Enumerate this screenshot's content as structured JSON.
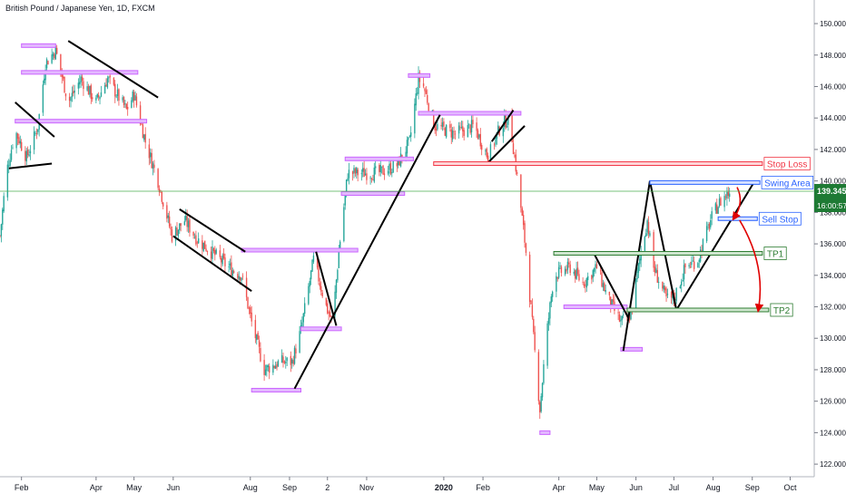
{
  "header": {
    "symbol_title": "British Pound / Japanese Yen, 1D, FXCM"
  },
  "colors": {
    "up": "#26a69a",
    "down": "#ef5350",
    "zone_purple": "#cc66ff",
    "zone_purple_fill": "#e3b8ff",
    "stop_red": "#f23645",
    "swing_blue": "#2962ff",
    "tp_green": "#2e7d32",
    "tp_fill": "#cfe6cf",
    "price_line": "#4caf50",
    "trendline": "#000000",
    "arrow_red": "#e00000"
  },
  "chart_data": {
    "type": "candlestick",
    "title": "British Pound / Japanese Yen, 1D, FXCM",
    "ylim": [
      121.2,
      151.5
    ],
    "y_ticks": [
      122,
      124,
      126,
      128,
      130,
      132,
      134,
      136,
      138,
      140,
      142,
      144,
      146,
      148,
      150
    ],
    "y_tick_labels": [
      "122.000",
      "124.000",
      "126.000",
      "128.000",
      "130.000",
      "132.000",
      "134.000",
      "136.000",
      "138.000",
      "140.000",
      "142.000",
      "144.000",
      "146.000",
      "148.000",
      "150.000"
    ],
    "x_range": [
      "2019-01-15",
      "2020-10-20"
    ],
    "x_ticks": [
      {
        "date": "2019-02-01",
        "label": "Feb"
      },
      {
        "date": "2019-04-01",
        "label": "Apr"
      },
      {
        "date": "2019-05-01",
        "label": "May"
      },
      {
        "date": "2019-06-01",
        "label": "Jun"
      },
      {
        "date": "2019-08-01",
        "label": "Aug"
      },
      {
        "date": "2019-09-01",
        "label": "Sep"
      },
      {
        "date": "2019-10-01",
        "label": "2"
      },
      {
        "date": "2019-11-01",
        "label": "Nov"
      },
      {
        "date": "2020-01-01",
        "label": "2020"
      },
      {
        "date": "2020-02-01",
        "label": "Feb"
      },
      {
        "date": "2020-04-01",
        "label": "Apr"
      },
      {
        "date": "2020-05-01",
        "label": "May"
      },
      {
        "date": "2020-06-01",
        "label": "Jun"
      },
      {
        "date": "2020-07-01",
        "label": "Jul"
      },
      {
        "date": "2020-08-01",
        "label": "Aug"
      },
      {
        "date": "2020-09-01",
        "label": "Sep"
      },
      {
        "date": "2020-10-01",
        "label": "Oct"
      }
    ],
    "grid": false,
    "price_path": [
      [
        "2019-01-15",
        136.5
      ],
      [
        "2019-01-20",
        140.5
      ],
      [
        "2019-01-27",
        143.2
      ],
      [
        "2019-02-05",
        141.5
      ],
      [
        "2019-02-10",
        142.5
      ],
      [
        "2019-02-14",
        143.5
      ],
      [
        "2019-02-20",
        147.5
      ],
      [
        "2019-02-28",
        148.3
      ],
      [
        "2019-03-10",
        145.0
      ],
      [
        "2019-03-20",
        146.5
      ],
      [
        "2019-04-01",
        145.0
      ],
      [
        "2019-04-10",
        146.5
      ],
      [
        "2019-04-25",
        144.5
      ],
      [
        "2019-05-01",
        145.5
      ],
      [
        "2019-05-10",
        142.5
      ],
      [
        "2019-05-20",
        140.0
      ],
      [
        "2019-05-31",
        136.5
      ],
      [
        "2019-06-10",
        137.5
      ],
      [
        "2019-06-20",
        136.3
      ],
      [
        "2019-07-01",
        135.5
      ],
      [
        "2019-07-15",
        134.5
      ],
      [
        "2019-07-25",
        134.0
      ],
      [
        "2019-08-02",
        131.0
      ],
      [
        "2019-08-12",
        128.0
      ],
      [
        "2019-08-25",
        128.5
      ],
      [
        "2019-09-03",
        128.5
      ],
      [
        "2019-09-10",
        130.5
      ],
      [
        "2019-09-20",
        135.0
      ],
      [
        "2019-09-30",
        132.0
      ],
      [
        "2019-10-05",
        131.0
      ],
      [
        "2019-10-10",
        135.5
      ],
      [
        "2019-10-17",
        140.5
      ],
      [
        "2019-10-25",
        140.5
      ],
      [
        "2019-11-10",
        140.5
      ],
      [
        "2019-11-25",
        141.0
      ],
      [
        "2019-12-05",
        142.5
      ],
      [
        "2019-12-12",
        146.5
      ],
      [
        "2019-12-16",
        146.0
      ],
      [
        "2019-12-25",
        143.5
      ],
      [
        "2020-01-10",
        143.0
      ],
      [
        "2020-01-25",
        143.5
      ],
      [
        "2020-02-05",
        141.5
      ],
      [
        "2020-02-15",
        143.5
      ],
      [
        "2020-02-22",
        144.0
      ],
      [
        "2020-03-01",
        139.0
      ],
      [
        "2020-03-06",
        135.5
      ],
      [
        "2020-03-12",
        130.0
      ],
      [
        "2020-03-17",
        125.5
      ],
      [
        "2020-03-22",
        130.0
      ],
      [
        "2020-03-28",
        134.0
      ],
      [
        "2020-04-10",
        134.5
      ],
      [
        "2020-04-20",
        133.5
      ],
      [
        "2020-05-01",
        134.5
      ],
      [
        "2020-05-10",
        132.5
      ],
      [
        "2020-05-20",
        131.0
      ],
      [
        "2020-05-28",
        131.5
      ],
      [
        "2020-06-05",
        135.5
      ],
      [
        "2020-06-10",
        137.5
      ],
      [
        "2020-06-15",
        134.5
      ],
      [
        "2020-06-25",
        132.5
      ],
      [
        "2020-07-01",
        132.5
      ],
      [
        "2020-07-10",
        134.5
      ],
      [
        "2020-07-20",
        135.0
      ],
      [
        "2020-07-30",
        137.5
      ],
      [
        "2020-08-05",
        138.5
      ],
      [
        "2020-08-10",
        139.0
      ],
      [
        "2020-08-14",
        139.3
      ]
    ],
    "current_price": {
      "value": 139.345,
      "label": "139.345",
      "countdown": "16:00:57"
    },
    "zones": [
      {
        "name": "zone-purple",
        "x1": "2019-02-01",
        "x2": "2019-02-28",
        "y": 148.6
      },
      {
        "name": "zone-purple",
        "x1": "2019-02-01",
        "x2": "2019-05-04",
        "y": 146.9
      },
      {
        "name": "zone-purple",
        "x1": "2019-01-27",
        "x2": "2019-05-11",
        "y": 143.8
      },
      {
        "name": "zone-purple",
        "x1": "2019-07-25",
        "x2": "2019-10-25",
        "y": 135.6
      },
      {
        "name": "zone-purple",
        "x1": "2019-09-10",
        "x2": "2019-10-12",
        "y": 130.6
      },
      {
        "name": "zone-purple",
        "x1": "2019-08-02",
        "x2": "2019-09-10",
        "y": 126.7
      },
      {
        "name": "zone-purple",
        "x1": "2019-10-15",
        "x2": "2019-12-08",
        "y": 141.4
      },
      {
        "name": "zone-purple",
        "x1": "2019-10-12",
        "x2": "2019-12-01",
        "y": 139.2
      },
      {
        "name": "zone-purple",
        "x1": "2019-12-04",
        "x2": "2019-12-21",
        "y": 146.7
      },
      {
        "name": "zone-purple",
        "x1": "2019-12-12",
        "x2": "2020-03-02",
        "y": 144.3
      },
      {
        "name": "zone-purple",
        "x1": "2020-03-17",
        "x2": "2020-03-25",
        "y": 124.0
      },
      {
        "name": "zone-purple",
        "x1": "2020-05-20",
        "x2": "2020-06-06",
        "y": 129.3
      },
      {
        "name": "zone-purple",
        "x1": "2020-04-05",
        "x2": "2020-05-25",
        "y": 132.0
      }
    ],
    "trendlines": [
      {
        "p1": [
          "2019-01-22",
          140.8
        ],
        "p2": [
          "2019-02-25",
          141.1
        ]
      },
      {
        "p1": [
          "2019-01-27",
          145.0
        ],
        "p2": [
          "2019-02-27",
          142.8
        ]
      },
      {
        "p1": [
          "2019-03-10",
          148.9
        ],
        "p2": [
          "2019-05-20",
          145.3
        ]
      },
      {
        "p1": [
          "2019-06-06",
          138.2
        ],
        "p2": [
          "2019-07-28",
          135.5
        ]
      },
      {
        "p1": [
          "2019-06-01",
          136.5
        ],
        "p2": [
          "2019-08-02",
          133.0
        ]
      },
      {
        "p1": [
          "2019-09-05",
          126.8
        ],
        "p2": [
          "2019-12-29",
          144.2
        ]
      },
      {
        "p1": [
          "2019-09-22",
          135.5
        ],
        "p2": [
          "2019-10-08",
          130.8
        ]
      },
      {
        "p1": [
          "2020-02-03",
          141.0
        ],
        "p2": [
          "2020-03-05",
          143.5
        ]
      },
      {
        "p1": [
          "2020-02-08",
          142.5
        ],
        "p2": [
          "2020-02-25",
          144.5
        ]
      },
      {
        "p1": [
          "2020-04-28",
          135.5
        ],
        "p2": [
          "2020-05-26",
          131.3
        ]
      },
      {
        "p1": [
          "2020-05-22",
          129.2
        ],
        "p2": [
          "2020-06-12",
          140.0
        ]
      },
      {
        "p1": [
          "2020-06-12",
          140.0
        ],
        "p2": [
          "2020-07-03",
          131.8
        ]
      },
      {
        "p1": [
          "2020-07-03",
          131.8
        ],
        "p2": [
          "2020-09-03",
          140.0
        ]
      }
    ],
    "levels": [
      {
        "name": "stop-loss-level",
        "label": "Stop Loss",
        "kind": "red",
        "x1": "2019-12-24",
        "x2": "2020-09-09",
        "y": 141.1
      },
      {
        "name": "swing-area-level",
        "label": "Swing Area",
        "kind": "blue",
        "x1": "2020-06-12",
        "x2": "2020-09-07",
        "y": 139.9
      },
      {
        "name": "sell-stop-level",
        "label": "Sell Stop",
        "kind": "blue",
        "x1": "2020-08-05",
        "x2": "2020-09-05",
        "y": 137.6
      },
      {
        "name": "tp1-level",
        "label": "TP1",
        "kind": "green",
        "x1": "2020-03-28",
        "x2": "2020-09-09",
        "y": 135.4
      },
      {
        "name": "tp2-level",
        "label": "TP2",
        "kind": "green",
        "x1": "2020-05-25",
        "x2": "2020-09-14",
        "y": 131.8
      }
    ],
    "arrows": [
      {
        "p1": [
          "2020-08-20",
          139.6
        ],
        "p2": [
          "2020-08-18",
          137.7
        ]
      },
      {
        "p1": [
          "2020-08-22",
          137.5
        ],
        "p2": [
          "2020-09-06",
          131.9
        ]
      }
    ]
  }
}
